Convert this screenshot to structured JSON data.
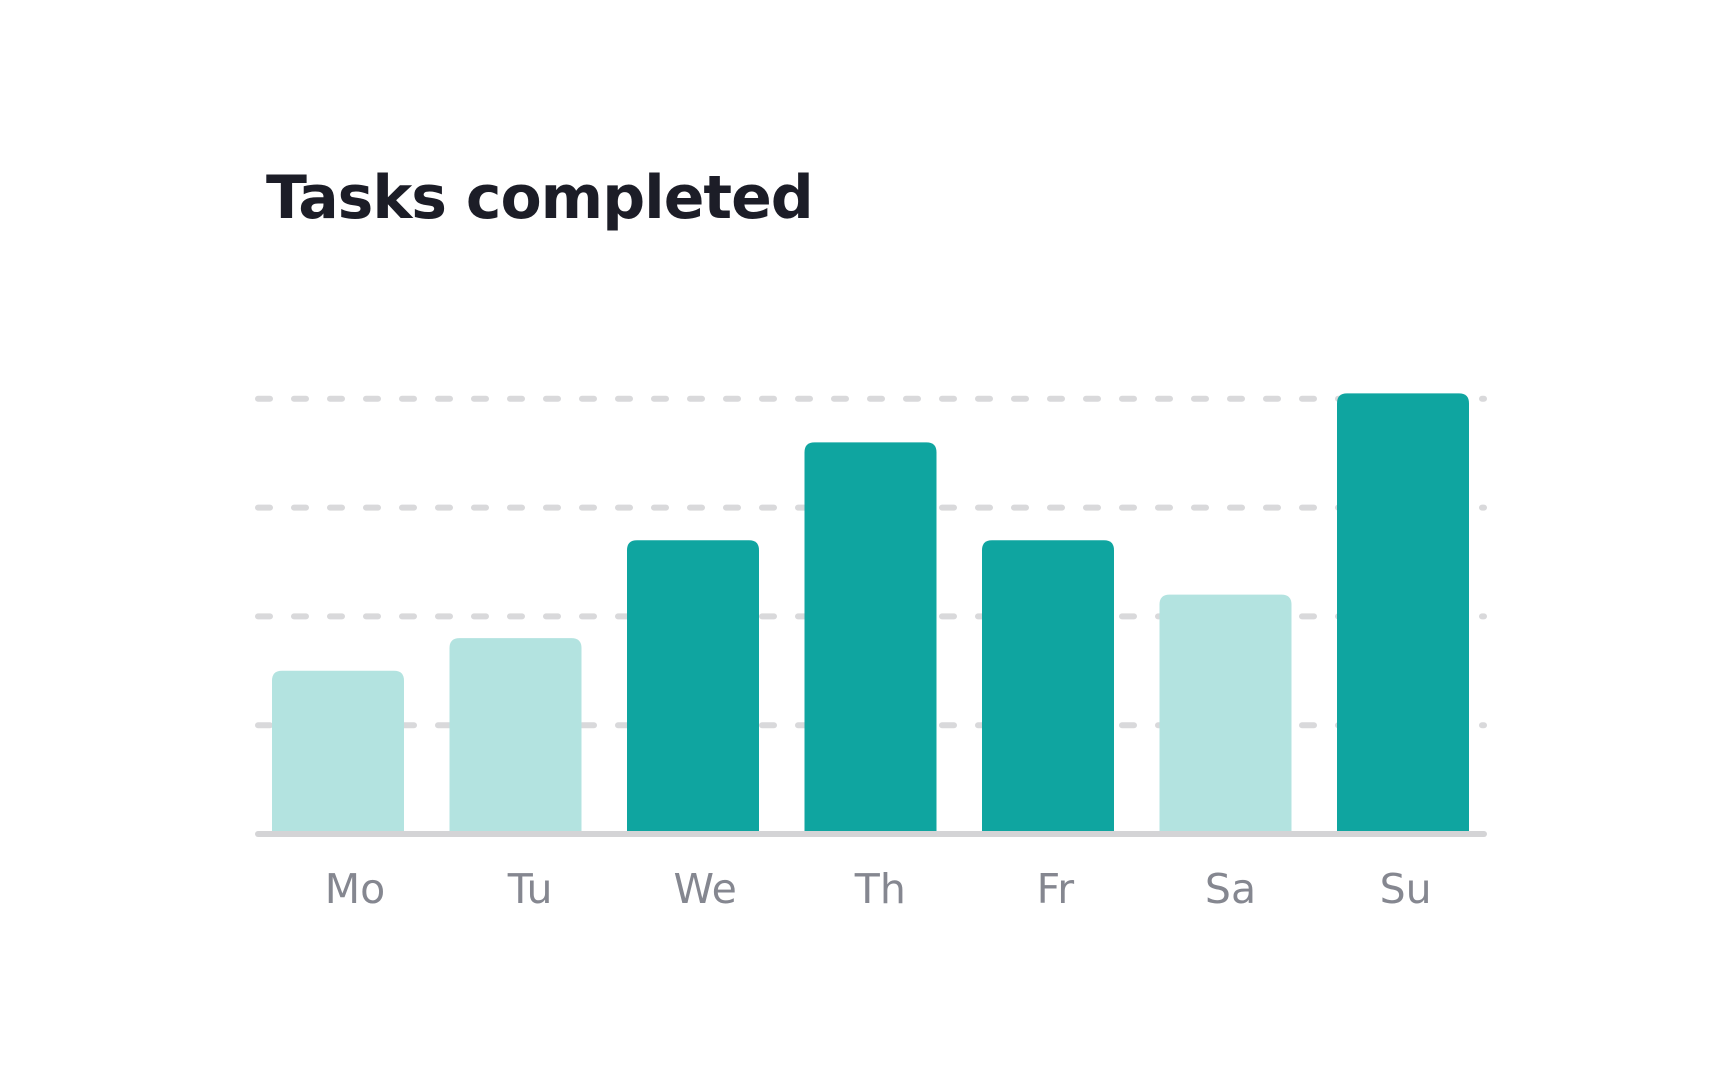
{
  "chart_data": {
    "type": "bar",
    "title": "Tasks completed",
    "categories": [
      "Mo",
      "Tu",
      "We",
      "Th",
      "Fr",
      "Sa",
      "Su"
    ],
    "values": [
      1.5,
      1.8,
      2.7,
      3.6,
      2.7,
      2.2,
      4.05
    ],
    "highlighted": [
      false,
      false,
      true,
      true,
      true,
      false,
      true
    ],
    "xlabel": "",
    "ylabel": "",
    "ylim": [
      0,
      4
    ],
    "gridlines": [
      1,
      2,
      3,
      4
    ],
    "grid": true,
    "legend": "none"
  },
  "colors": {
    "bar_highlight": "#0fa5a0",
    "bar_muted": "#b3e3e0",
    "grid": "#d9d9db",
    "axis": "#d4d4d6",
    "title": "#1c1d27",
    "tick_label": "#858790"
  }
}
